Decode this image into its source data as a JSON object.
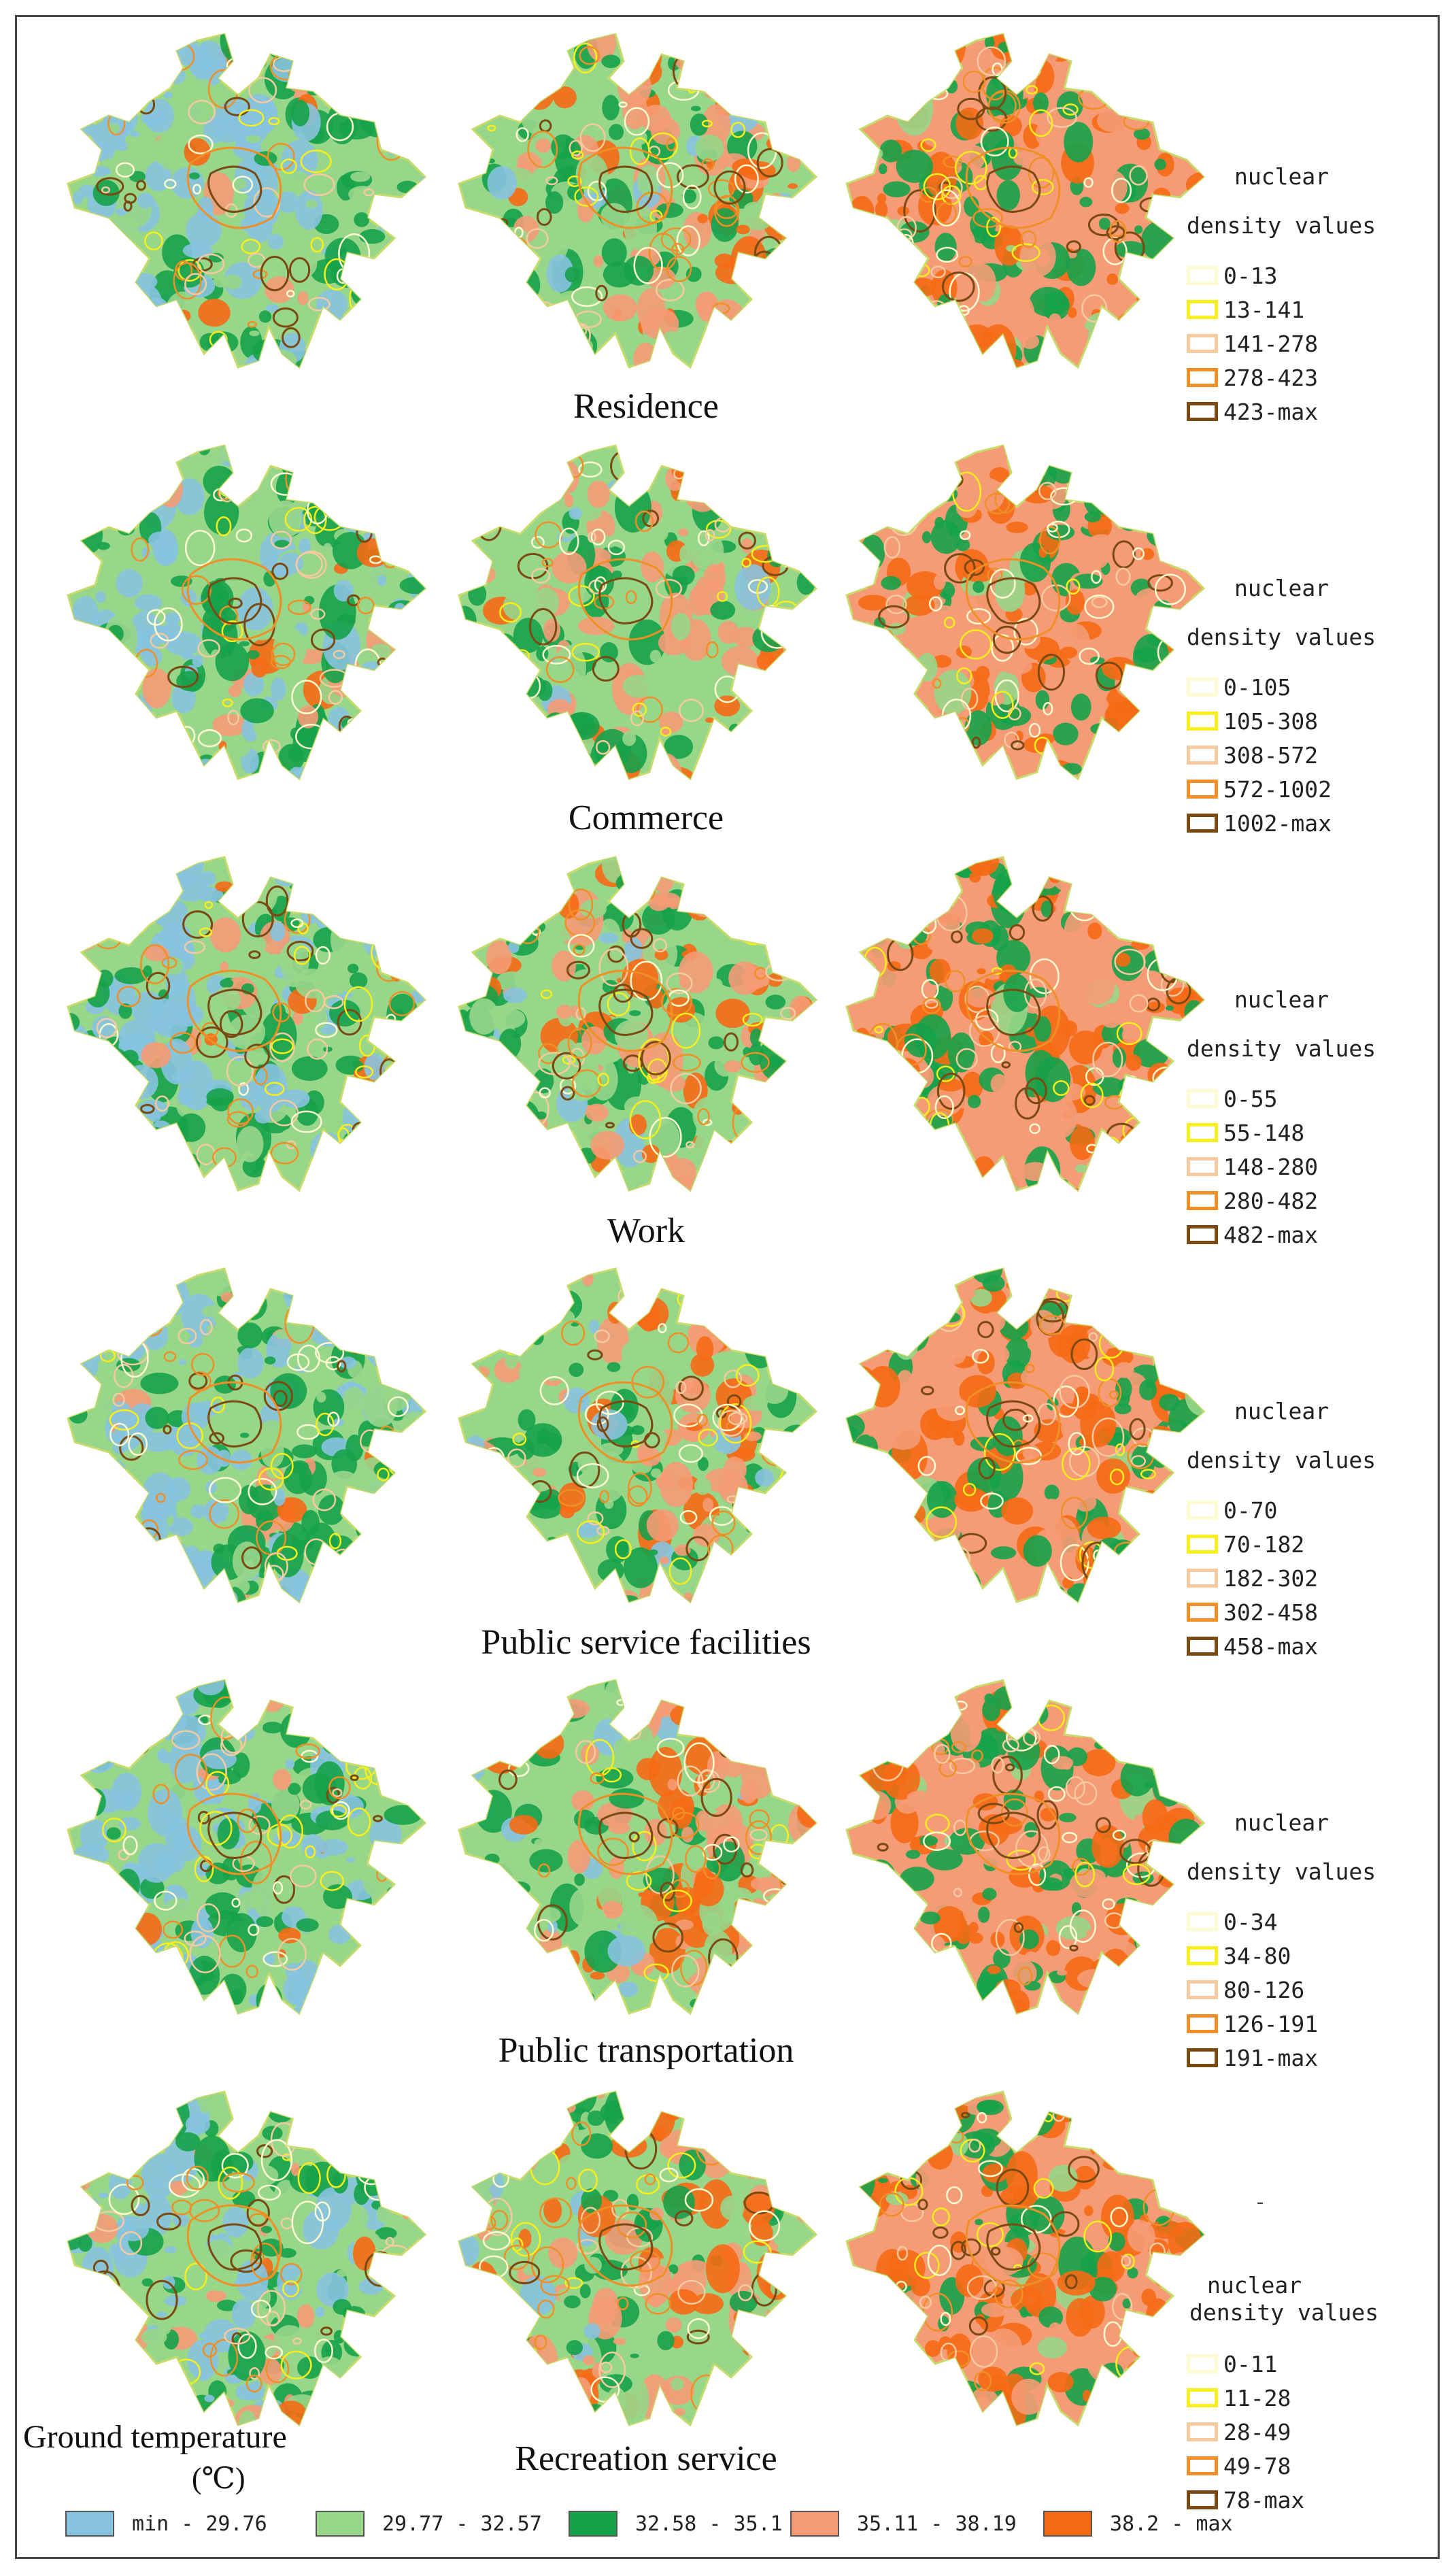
{
  "rows": [
    {
      "title": "Residence",
      "legend": {
        "line1": "nuclear",
        "line2": "density values",
        "items": [
          "0-13",
          "13-141",
          "141-278",
          "278-423",
          "423-max"
        ]
      }
    },
    {
      "title": "Commerce",
      "legend": {
        "line1": "nuclear",
        "line2": "density values",
        "items": [
          "0-105",
          "105-308",
          "308-572",
          "572-1002",
          "1002-max"
        ]
      }
    },
    {
      "title": "Work",
      "legend": {
        "line1": "nuclear",
        "line2": "density values",
        "items": [
          "0-55",
          "55-148",
          "148-280",
          "280-482",
          "482-max"
        ]
      }
    },
    {
      "title": "Public service facilities",
      "legend": {
        "line1": "nuclear",
        "line2": "density values",
        "items": [
          "0-70",
          "70-182",
          "182-302",
          "302-458",
          "458-max"
        ]
      }
    },
    {
      "title": "Public transportation",
      "legend": {
        "line1": "nuclear",
        "line2": "density values",
        "items": [
          "0-34",
          "34-80",
          "80-126",
          "126-191",
          "191-max"
        ]
      }
    },
    {
      "title": "Recreation service",
      "legend": {
        "line1": "nuclear",
        "line2": "density values",
        "items": [
          "0-11",
          "11-28",
          "28-49",
          "49-78",
          "78-max"
        ]
      }
    }
  ],
  "kernel_colors": [
    "#fdfbd2",
    "#f7ee1c",
    "#f6caa0",
    "#ef8f26",
    "#7a4a12"
  ],
  "ground_temperature": {
    "title": "Ground temperature",
    "unit": "(℃)",
    "classes": [
      {
        "label": "min  - 29.76",
        "color": "#87c3df"
      },
      {
        "label": "29.77 - 32.57",
        "color": "#98d68a"
      },
      {
        "label": "32.58 - 35.1",
        "color": "#16a24a"
      },
      {
        "label": "35.11 - 38.19",
        "color": "#f59b76"
      },
      {
        "label": "38.2 -  max",
        "color": "#f66a15"
      }
    ]
  },
  "misc_mark": "-"
}
